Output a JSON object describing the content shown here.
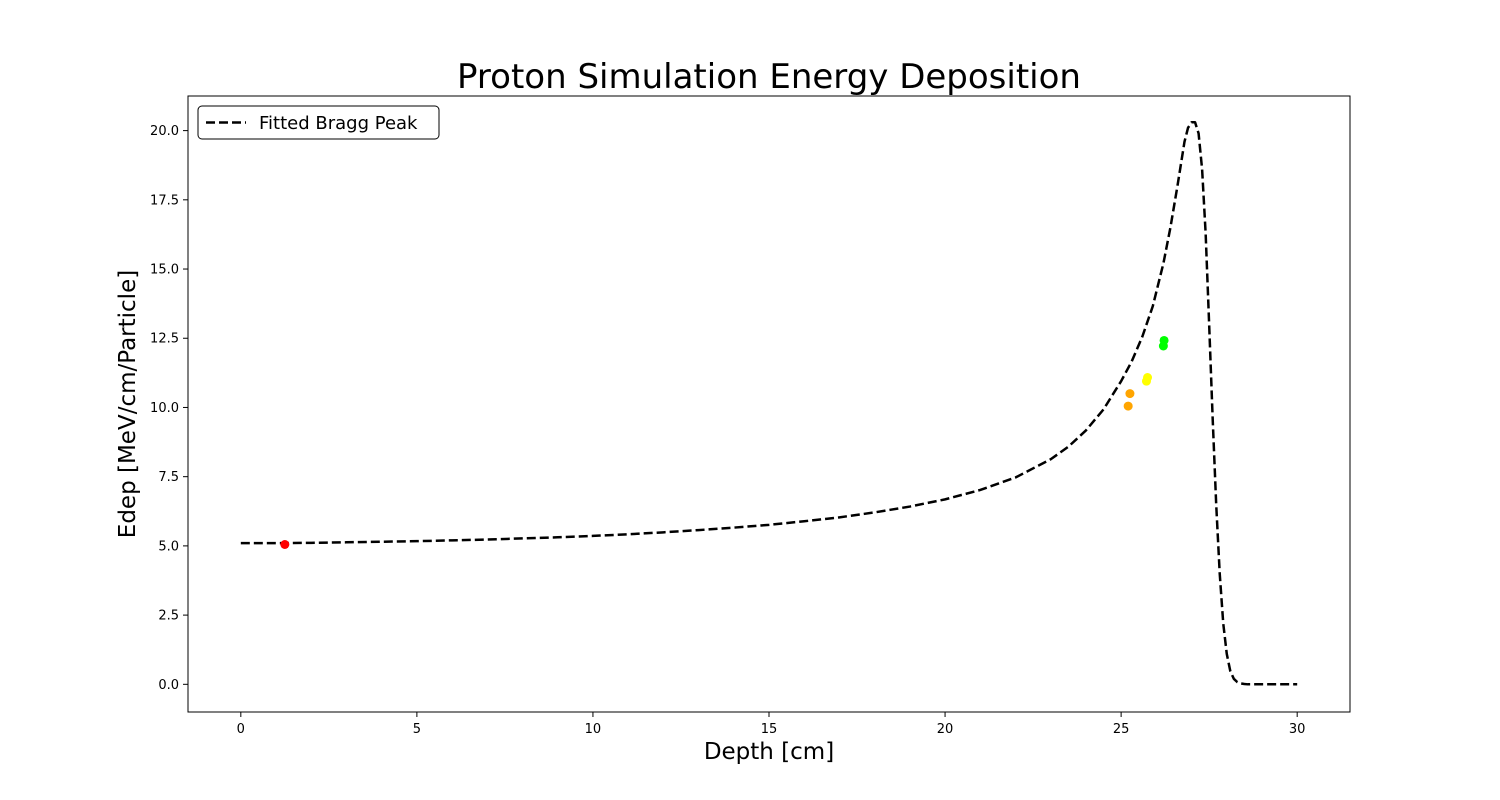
{
  "chart_data": {
    "type": "line",
    "title": "Proton Simulation Energy Deposition",
    "xlabel": "Depth [cm]",
    "ylabel": "Edep [MeV/cm/Particle]",
    "xlim": [
      -1.5,
      31.5
    ],
    "ylim": [
      -1.0,
      21.25
    ],
    "xticks": [
      0,
      5,
      10,
      15,
      20,
      25,
      30
    ],
    "yticks": [
      0.0,
      2.5,
      5.0,
      7.5,
      10.0,
      12.5,
      15.0,
      17.5,
      20.0
    ],
    "xtick_labels": [
      "0",
      "5",
      "10",
      "15",
      "20",
      "25",
      "30"
    ],
    "ytick_labels": [
      "0.0",
      "2.5",
      "5.0",
      "7.5",
      "10.0",
      "12.5",
      "15.0",
      "17.5",
      "20.0"
    ],
    "grid": false,
    "legend": {
      "placement": "top-left",
      "entries": [
        "Fitted Bragg Peak"
      ]
    },
    "series": [
      {
        "name": "Fitted Bragg Peak",
        "style": "dashed",
        "color": "#000000",
        "x": [
          0,
          1,
          2,
          3,
          4,
          5,
          6,
          7,
          8,
          9,
          10,
          11,
          12,
          13,
          14,
          15,
          16,
          17,
          18,
          19,
          20,
          21,
          22,
          23,
          23.5,
          24,
          24.5,
          25,
          25.3,
          25.6,
          25.9,
          26.2,
          26.4,
          26.6,
          26.8,
          26.9,
          27.0,
          27.1,
          27.2,
          27.3,
          27.4,
          27.5,
          27.6,
          27.7,
          27.8,
          27.9,
          28.0,
          28.1,
          28.2,
          28.3,
          28.4,
          28.5,
          28.6,
          28.8,
          29.0,
          29.5,
          30.0
        ],
        "y": [
          5.1,
          5.1,
          5.11,
          5.13,
          5.15,
          5.17,
          5.2,
          5.23,
          5.27,
          5.31,
          5.36,
          5.42,
          5.49,
          5.57,
          5.66,
          5.76,
          5.89,
          6.03,
          6.21,
          6.42,
          6.68,
          7.02,
          7.47,
          8.13,
          8.58,
          9.17,
          9.93,
          10.95,
          11.66,
          12.55,
          13.66,
          15.2,
          16.5,
          18.0,
          19.6,
          20.1,
          20.3,
          20.3,
          19.9,
          18.6,
          16.3,
          13.0,
          9.6,
          6.5,
          4.0,
          2.2,
          1.1,
          0.48,
          0.2,
          0.08,
          0.03,
          0.01,
          0.0,
          0.0,
          0.0,
          0.0,
          0.0
        ]
      },
      {
        "name": "",
        "style": "markers",
        "x": [
          1.25,
          25.2,
          25.25,
          25.72,
          25.75,
          26.2,
          26.22
        ],
        "y": [
          5.05,
          10.05,
          10.5,
          10.95,
          11.08,
          12.22,
          12.42
        ],
        "colors": [
          "#ff0000",
          "#ffa500",
          "#ffa500",
          "#ffff00",
          "#ffff00",
          "#00ff00",
          "#00ff00"
        ]
      }
    ]
  }
}
